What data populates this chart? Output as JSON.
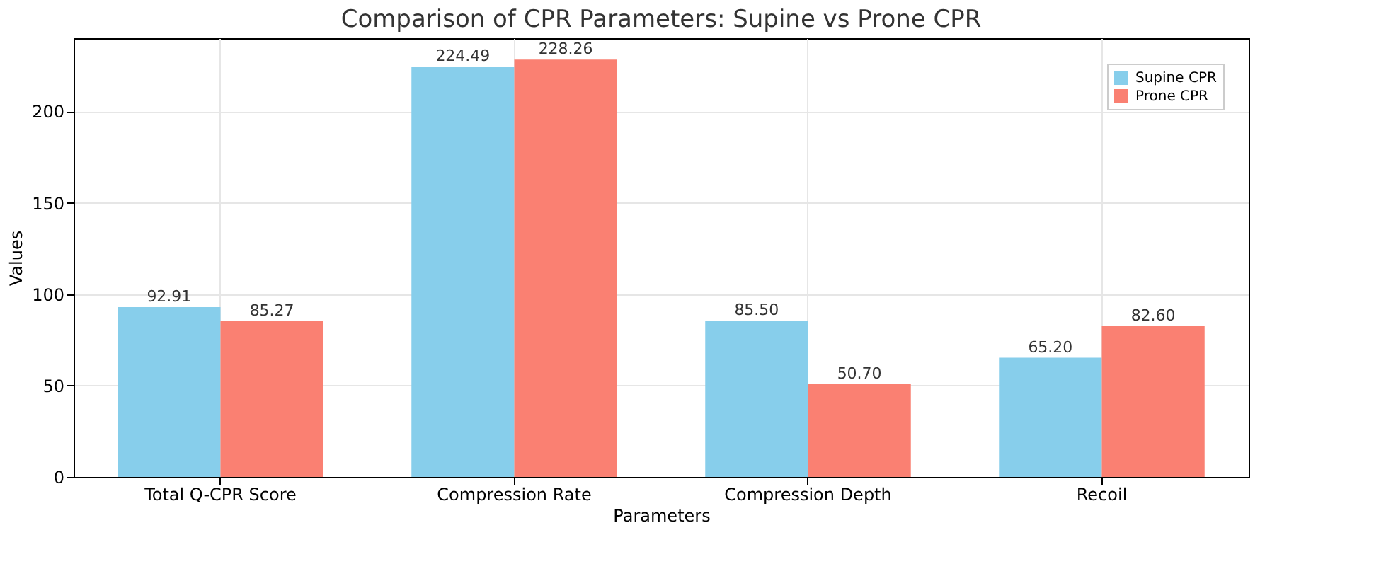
{
  "chart_data": {
    "type": "bar",
    "title": "Comparison of CPR Parameters: Supine vs Prone CPR",
    "xlabel": "Parameters",
    "ylabel": "Values",
    "categories": [
      "Total Q-CPR Score",
      "Compression Rate",
      "Compression Depth",
      "Recoil"
    ],
    "series": [
      {
        "name": "Supine CPR",
        "color": "#87ceeb",
        "values": [
          92.91,
          224.49,
          85.5,
          65.2
        ],
        "value_labels": [
          "92.91",
          "224.49",
          "85.50",
          "65.20"
        ]
      },
      {
        "name": "Prone CPR",
        "color": "#fa8072",
        "values": [
          85.27,
          228.26,
          50.7,
          82.6
        ],
        "value_labels": [
          "85.27",
          "228.26",
          "50.70",
          "82.60"
        ]
      }
    ],
    "ylim": [
      0,
      240
    ],
    "yticks": [
      0,
      50,
      100,
      150,
      200
    ],
    "grid": true,
    "legend": "top right"
  }
}
